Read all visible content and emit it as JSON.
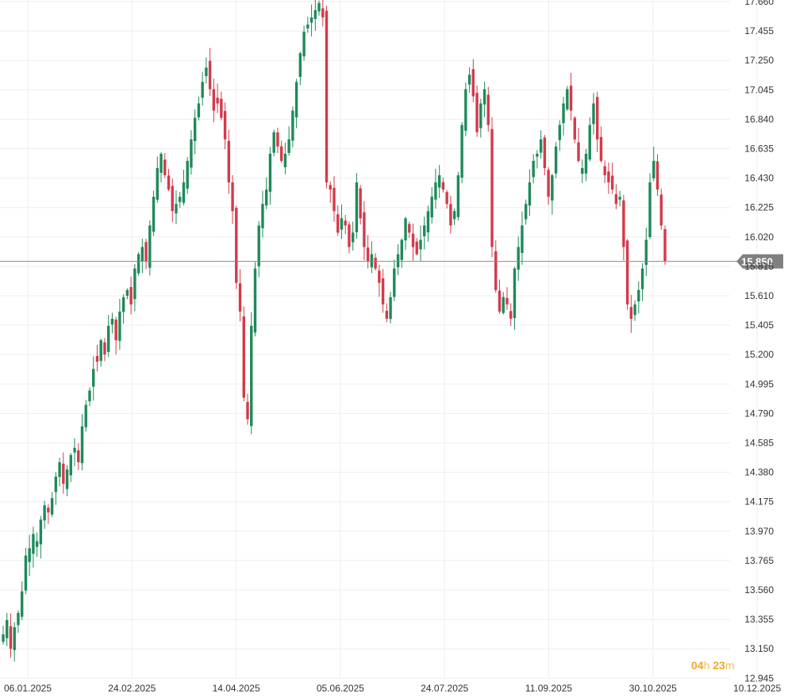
{
  "chart_data": {
    "type": "candlestick",
    "colors": {
      "up": "#1e8a5a",
      "down": "#d33a4a",
      "price_line": "#888888",
      "price_tag_bg": "#808080",
      "grid": "#eeeeee"
    },
    "y_ticks": [
      "17.660",
      "17.455",
      "17.250",
      "17.045",
      "16.840",
      "16.635",
      "16.430",
      "16.225",
      "16.020",
      "15.815",
      "15.610",
      "15.405",
      "15.200",
      "14.995",
      "14.790",
      "14.585",
      "14.380",
      "14.175",
      "13.970",
      "13.765",
      "13.560",
      "13.355",
      "13.150",
      "12.945"
    ],
    "x_ticks": [
      "06.01.2025",
      "24.02.2025",
      "14.04.2025",
      "05.06.2025",
      "24.07.2025",
      "11.09.2025",
      "30.10.2025",
      "10.12.2025"
    ],
    "ylim": [
      12.945,
      17.66
    ],
    "current_price": "15.850",
    "close_series": [
      13.25,
      13.35,
      13.15,
      13.3,
      13.4,
      13.55,
      13.8,
      13.85,
      13.95,
      13.9,
      14.05,
      14.15,
      14.1,
      14.2,
      14.35,
      14.45,
      14.3,
      14.4,
      14.5,
      14.55,
      14.45,
      14.7,
      14.85,
      14.95,
      15.1,
      15.15,
      15.3,
      15.2,
      15.4,
      15.45,
      15.3,
      15.5,
      15.6,
      15.65,
      15.55,
      15.8,
      15.9,
      15.95,
      15.85,
      16.1,
      16.3,
      16.5,
      16.6,
      16.45,
      16.35,
      16.2,
      16.25,
      16.3,
      16.4,
      16.55,
      16.7,
      16.85,
      16.95,
      17.1,
      17.2,
      17.05,
      16.9,
      16.95,
      16.85,
      16.7,
      16.4,
      16.2,
      15.7,
      15.5,
      14.9,
      14.75,
      15.4,
      15.8,
      16.1,
      16.25,
      16.35,
      16.6,
      16.75,
      16.65,
      16.55,
      16.6,
      16.7,
      16.9,
      17.1,
      17.3,
      17.45,
      17.5,
      17.55,
      17.6,
      17.65,
      17.55,
      16.4,
      16.35,
      16.2,
      16.05,
      16.15,
      16.1,
      15.95,
      16.05,
      16.4,
      16.15,
      15.95,
      15.85,
      15.9,
      15.8,
      15.7,
      15.55,
      15.45,
      15.6,
      15.8,
      15.9,
      16.0,
      16.15,
      16.05,
      15.95,
      15.9,
      16.0,
      16.1,
      16.2,
      16.3,
      16.4,
      16.45,
      16.35,
      16.25,
      16.1,
      16.2,
      16.45,
      16.8,
      17.05,
      17.15,
      17.0,
      16.75,
      16.95,
      17.05,
      16.8,
      15.95,
      15.65,
      15.5,
      15.6,
      15.55,
      15.45,
      15.8,
      15.95,
      16.1,
      16.25,
      16.4,
      16.55,
      16.6,
      16.7,
      16.5,
      16.3,
      16.45,
      16.65,
      16.8,
      16.95,
      17.05,
      16.9,
      16.7,
      16.55,
      16.5,
      16.6,
      16.8,
      16.95,
      16.7,
      16.55,
      16.45,
      16.4,
      16.35,
      16.25,
      16.3,
      15.95,
      15.55,
      15.45,
      15.55,
      15.65,
      15.8,
      16.0,
      16.4,
      16.55,
      16.35,
      16.1,
      15.85
    ],
    "annotations": [
      {
        "num": "04",
        "unit": "h"
      },
      {
        "num": "23",
        "unit": "m"
      }
    ]
  }
}
